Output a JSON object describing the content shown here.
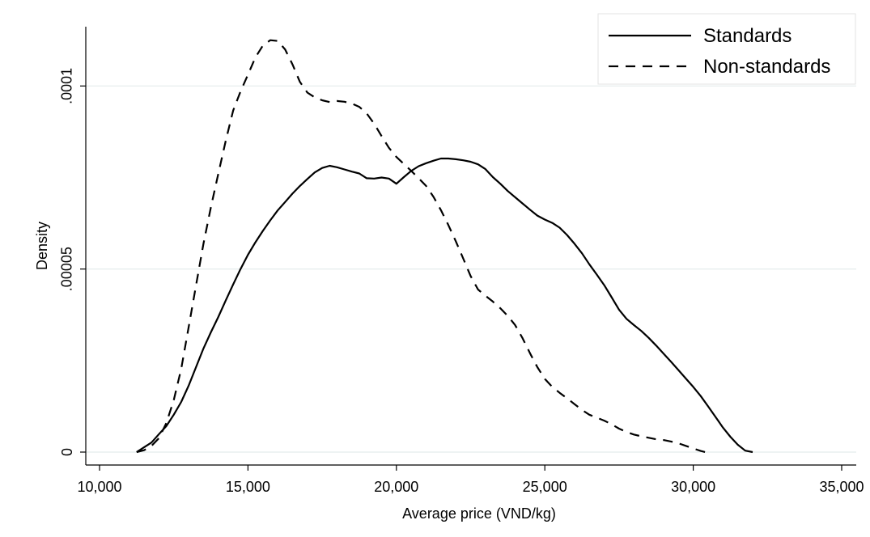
{
  "chart_data": {
    "type": "line",
    "title": "",
    "xlabel": "Average price (VND/kg)",
    "ylabel": "Density",
    "xlim": [
      10000,
      35000
    ],
    "ylim": [
      0,
      0.000112
    ],
    "x_ticks": [
      {
        "value": 10000,
        "label": "10,000"
      },
      {
        "value": 15000,
        "label": "15,000"
      },
      {
        "value": 20000,
        "label": "20,000"
      },
      {
        "value": 25000,
        "label": "25,000"
      },
      {
        "value": 30000,
        "label": "30,000"
      },
      {
        "value": 35000,
        "label": "35,000"
      }
    ],
    "y_ticks": [
      {
        "value": 0,
        "label": "0"
      },
      {
        "value": 5e-05,
        "label": ".00005"
      },
      {
        "value": 0.0001,
        "label": ".0001"
      }
    ],
    "grid": "horizontal",
    "legend_position": "top-right",
    "series": [
      {
        "name": "Standards",
        "style": "solid",
        "color": "#000000",
        "points": [
          [
            11250,
            0.0
          ],
          [
            11500,
            1.3e-06
          ],
          [
            11750,
            2.6e-06
          ],
          [
            12000,
            4.9e-06
          ],
          [
            12250,
            7.1e-06
          ],
          [
            12500,
            1.02e-05
          ],
          [
            12750,
            1.37e-05
          ],
          [
            13000,
            1.81e-05
          ],
          [
            13250,
            2.32e-05
          ],
          [
            13500,
            2.83e-05
          ],
          [
            13750,
            3.27e-05
          ],
          [
            14000,
            3.69e-05
          ],
          [
            14250,
            4.14e-05
          ],
          [
            14500,
            4.58e-05
          ],
          [
            14750,
            5e-05
          ],
          [
            15000,
            5.39e-05
          ],
          [
            15250,
            5.73e-05
          ],
          [
            15500,
            6.04e-05
          ],
          [
            15750,
            6.33e-05
          ],
          [
            16000,
            6.6e-05
          ],
          [
            16250,
            6.83e-05
          ],
          [
            16500,
            7.06e-05
          ],
          [
            16750,
            7.27e-05
          ],
          [
            17000,
            7.46e-05
          ],
          [
            17250,
            7.64e-05
          ],
          [
            17500,
            7.76e-05
          ],
          [
            17750,
            7.82e-05
          ],
          [
            18000,
            7.78e-05
          ],
          [
            18250,
            7.72e-05
          ],
          [
            18500,
            7.66e-05
          ],
          [
            18750,
            7.61e-05
          ],
          [
            19000,
            7.48e-05
          ],
          [
            19250,
            7.47e-05
          ],
          [
            19500,
            7.5e-05
          ],
          [
            19750,
            7.47e-05
          ],
          [
            20000,
            7.33e-05
          ],
          [
            20250,
            7.51e-05
          ],
          [
            20500,
            7.68e-05
          ],
          [
            20750,
            7.81e-05
          ],
          [
            21000,
            7.89e-05
          ],
          [
            21250,
            7.96e-05
          ],
          [
            21500,
            8.02e-05
          ],
          [
            21750,
            8.02e-05
          ],
          [
            22000,
            8e-05
          ],
          [
            22250,
            7.97e-05
          ],
          [
            22500,
            7.93e-05
          ],
          [
            22750,
            7.86e-05
          ],
          [
            23000,
            7.73e-05
          ],
          [
            23250,
            7.51e-05
          ],
          [
            23500,
            7.33e-05
          ],
          [
            23750,
            7.13e-05
          ],
          [
            24000,
            6.96e-05
          ],
          [
            24250,
            6.79e-05
          ],
          [
            24500,
            6.62e-05
          ],
          [
            24750,
            6.46e-05
          ],
          [
            25000,
            6.35e-05
          ],
          [
            25250,
            6.26e-05
          ],
          [
            25500,
            6.13e-05
          ],
          [
            25750,
            5.93e-05
          ],
          [
            26000,
            5.69e-05
          ],
          [
            26250,
            5.43e-05
          ],
          [
            26500,
            5.13e-05
          ],
          [
            26750,
            4.85e-05
          ],
          [
            27000,
            4.56e-05
          ],
          [
            27250,
            4.23e-05
          ],
          [
            27500,
            3.89e-05
          ],
          [
            27750,
            3.64e-05
          ],
          [
            28000,
            3.47e-05
          ],
          [
            28250,
            3.31e-05
          ],
          [
            28500,
            3.12e-05
          ],
          [
            28750,
            2.91e-05
          ],
          [
            29000,
            2.69e-05
          ],
          [
            29250,
            2.47e-05
          ],
          [
            29500,
            2.24e-05
          ],
          [
            29750,
            2.01e-05
          ],
          [
            30000,
            1.78e-05
          ],
          [
            30250,
            1.53e-05
          ],
          [
            30500,
            1.25e-05
          ],
          [
            30750,
            9.6e-06
          ],
          [
            31000,
            6.7e-06
          ],
          [
            31250,
            4.2e-06
          ],
          [
            31500,
            2e-06
          ],
          [
            31750,
            4e-07
          ],
          [
            32000,
            0.0
          ]
        ]
      },
      {
        "name": "Non-standards",
        "style": "dashed",
        "color": "#000000",
        "points": [
          [
            11250,
            0.0
          ],
          [
            11500,
            5e-07
          ],
          [
            11750,
            1.7e-06
          ],
          [
            12000,
            3.8e-06
          ],
          [
            12250,
            7.9e-06
          ],
          [
            12500,
            1.42e-05
          ],
          [
            12750,
            2.27e-05
          ],
          [
            13000,
            3.4e-05
          ],
          [
            13250,
            4.55e-05
          ],
          [
            13500,
            5.69e-05
          ],
          [
            13750,
            6.68e-05
          ],
          [
            14000,
            7.6e-05
          ],
          [
            14250,
            8.5e-05
          ],
          [
            14500,
            9.33e-05
          ],
          [
            14750,
            9.85e-05
          ],
          [
            15000,
            0.0001031
          ],
          [
            15250,
            0.0001078
          ],
          [
            15500,
            0.000111
          ],
          [
            15750,
            0.0001125
          ],
          [
            16000,
            0.0001123
          ],
          [
            16250,
            0.00011
          ],
          [
            16500,
            0.0001059
          ],
          [
            16750,
            0.0001011
          ],
          [
            17000,
            9.82e-05
          ],
          [
            17250,
            9.69e-05
          ],
          [
            17500,
            9.61e-05
          ],
          [
            17750,
            9.56e-05
          ],
          [
            18000,
            9.59e-05
          ],
          [
            18250,
            9.57e-05
          ],
          [
            18500,
            9.52e-05
          ],
          [
            18750,
            9.43e-05
          ],
          [
            19000,
            9.25e-05
          ],
          [
            19250,
            8.97e-05
          ],
          [
            19500,
            8.63e-05
          ],
          [
            19750,
            8.31e-05
          ],
          [
            20000,
            8.06e-05
          ],
          [
            20250,
            7.87e-05
          ],
          [
            20500,
            7.68e-05
          ],
          [
            20750,
            7.48e-05
          ],
          [
            21000,
            7.27e-05
          ],
          [
            21250,
            6.97e-05
          ],
          [
            21500,
            6.61e-05
          ],
          [
            21750,
            6.2e-05
          ],
          [
            22000,
            5.76e-05
          ],
          [
            22250,
            5.29e-05
          ],
          [
            22500,
            4.81e-05
          ],
          [
            22750,
            4.44e-05
          ],
          [
            23000,
            4.27e-05
          ],
          [
            23250,
            4.11e-05
          ],
          [
            23500,
            3.93e-05
          ],
          [
            23750,
            3.72e-05
          ],
          [
            24000,
            3.47e-05
          ],
          [
            24250,
            3.11e-05
          ],
          [
            24500,
            2.7e-05
          ],
          [
            24750,
            2.32e-05
          ],
          [
            25000,
            2e-05
          ],
          [
            25250,
            1.78e-05
          ],
          [
            25500,
            1.62e-05
          ],
          [
            25750,
            1.47e-05
          ],
          [
            26000,
            1.31e-05
          ],
          [
            26250,
            1.15e-05
          ],
          [
            26500,
            1.02e-05
          ],
          [
            26750,
            9.4e-06
          ],
          [
            27000,
            8.6e-06
          ],
          [
            27250,
            7.6e-06
          ],
          [
            27500,
            6.4e-06
          ],
          [
            27750,
            5.5e-06
          ],
          [
            28000,
            4.8e-06
          ],
          [
            28250,
            4.3e-06
          ],
          [
            28500,
            3.9e-06
          ],
          [
            28750,
            3.5e-06
          ],
          [
            29000,
            3.3e-06
          ],
          [
            29250,
            2.9e-06
          ],
          [
            29500,
            2.4e-06
          ],
          [
            29750,
            1.7e-06
          ],
          [
            30000,
            1e-06
          ],
          [
            30250,
            3e-07
          ],
          [
            30400,
            0.0
          ]
        ]
      }
    ]
  }
}
